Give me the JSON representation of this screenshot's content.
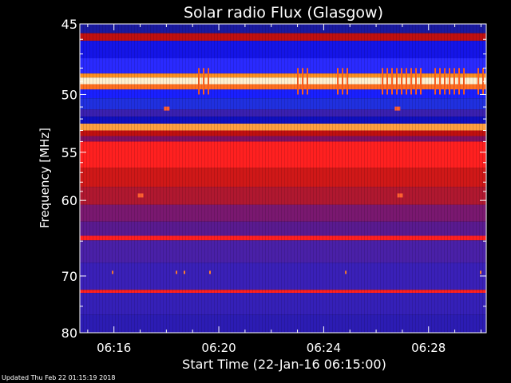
{
  "chart_data": {
    "type": "heatmap",
    "title": "Solar radio Flux (Glasgow)",
    "xlabel": "Start Time (22-Jan-16 06:15:00)",
    "ylabel": "Frequency [MHz]",
    "xlim": [
      "06:14.7",
      "06:30.2"
    ],
    "ylim": [
      45,
      80
    ],
    "x_ticks": [
      {
        "minute": 16,
        "label": "06:16"
      },
      {
        "minute": 20,
        "label": "06:20"
      },
      {
        "minute": 24,
        "label": "06:24"
      },
      {
        "minute": 28,
        "label": "06:28"
      }
    ],
    "y_ticks": [
      {
        "mhz": 45,
        "label": "45"
      },
      {
        "mhz": 50,
        "label": "50"
      },
      {
        "mhz": 55,
        "label": "55"
      },
      {
        "mhz": 60,
        "label": "60"
      },
      {
        "mhz": 70,
        "label": "70"
      },
      {
        "mhz": 80,
        "label": "80"
      }
    ],
    "bands": [
      {
        "from_mhz": 45.0,
        "to_mhz": 45.6,
        "color": "#1a1aa0"
      },
      {
        "from_mhz": 45.6,
        "to_mhz": 46.1,
        "color": "#c01010"
      },
      {
        "from_mhz": 46.1,
        "to_mhz": 47.3,
        "color": "#1515e8"
      },
      {
        "from_mhz": 47.3,
        "to_mhz": 48.4,
        "color": "#2a2aff"
      },
      {
        "from_mhz": 48.4,
        "to_mhz": 48.7,
        "color": "#ff9020"
      },
      {
        "from_mhz": 48.7,
        "to_mhz": 49.2,
        "color": "#fff0d0"
      },
      {
        "from_mhz": 49.2,
        "to_mhz": 49.6,
        "color": "#ff7020"
      },
      {
        "from_mhz": 49.6,
        "to_mhz": 50.3,
        "color": "#1a20ff"
      },
      {
        "from_mhz": 50.3,
        "to_mhz": 51.2,
        "color": "#2030e0"
      },
      {
        "from_mhz": 51.2,
        "to_mhz": 51.8,
        "color": "#3a20b0"
      },
      {
        "from_mhz": 51.8,
        "to_mhz": 52.4,
        "color": "#1010c0"
      },
      {
        "from_mhz": 52.4,
        "to_mhz": 53.0,
        "color": "#ffa040"
      },
      {
        "from_mhz": 53.0,
        "to_mhz": 53.5,
        "color": "#c01010"
      },
      {
        "from_mhz": 53.5,
        "to_mhz": 54.0,
        "color": "#801060"
      },
      {
        "from_mhz": 54.0,
        "to_mhz": 56.5,
        "color": "#ff2020"
      },
      {
        "from_mhz": 56.5,
        "to_mhz": 58.5,
        "color": "#d01818"
      },
      {
        "from_mhz": 58.5,
        "to_mhz": 60.5,
        "color": "#b01830"
      },
      {
        "from_mhz": 60.5,
        "to_mhz": 62.5,
        "color": "#7a1870"
      },
      {
        "from_mhz": 62.5,
        "to_mhz": 64.3,
        "color": "#5a1a90"
      },
      {
        "from_mhz": 64.3,
        "to_mhz": 64.9,
        "color": "#ff2020"
      },
      {
        "from_mhz": 64.9,
        "to_mhz": 68.0,
        "color": "#4a20a8"
      },
      {
        "from_mhz": 68.0,
        "to_mhz": 72.2,
        "color": "#3a20b8"
      },
      {
        "from_mhz": 72.2,
        "to_mhz": 72.7,
        "color": "#ff2020"
      },
      {
        "from_mhz": 72.7,
        "to_mhz": 76.5,
        "color": "#3520b8"
      },
      {
        "from_mhz": 76.5,
        "to_mhz": 80.0,
        "color": "#2c1cb4"
      }
    ],
    "bursts": [
      {
        "minute": 17.0,
        "mhz": 59.4
      },
      {
        "minute": 26.9,
        "mhz": 59.4
      },
      {
        "minute": 18.0,
        "mhz": 51.1
      },
      {
        "minute": 26.8,
        "mhz": 51.1
      }
    ]
  },
  "footer": "Updated Thu Feb 22 01:15:19 2018",
  "colors": {
    "background": "#000000",
    "axis": "#ffffff",
    "text": "#ffffff"
  }
}
